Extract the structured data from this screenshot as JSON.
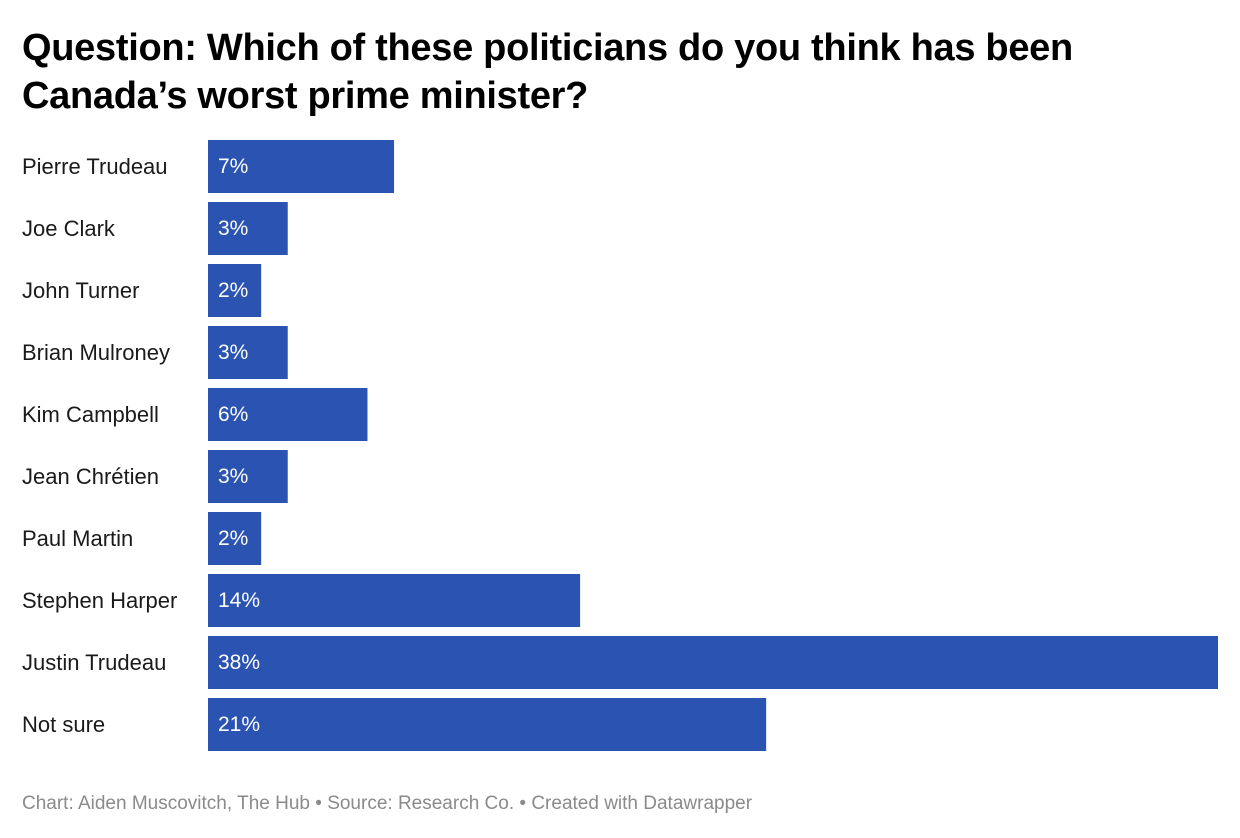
{
  "chart_data": {
    "type": "bar",
    "orientation": "horizontal",
    "title": "Question: Which of these politicians do you think has been Canada’s worst prime minister?",
    "categories": [
      "Pierre Trudeau",
      "Joe Clark",
      "John Turner",
      "Brian Mulroney",
      "Kim Campbell",
      "Jean Chrétien",
      "Paul Martin",
      "Stephen Harper",
      "Justin Trudeau",
      "Not sure"
    ],
    "values": [
      7,
      3,
      2,
      3,
      6,
      3,
      2,
      14,
      38,
      21
    ],
    "value_labels": [
      "7%",
      "3%",
      "2%",
      "3%",
      "6%",
      "3%",
      "2%",
      "14%",
      "38%",
      "21%"
    ],
    "unit": "%",
    "xlim": [
      0,
      38
    ],
    "bar_color": "#2b53b2",
    "label_color": "#ffffff",
    "xlabel": "",
    "ylabel": ""
  },
  "footer": {
    "credit": "Chart: Aiden Muscovitch, The Hub",
    "source": "Source: Research Co.",
    "tool": "Created with Datawrapper",
    "separator": "•"
  }
}
